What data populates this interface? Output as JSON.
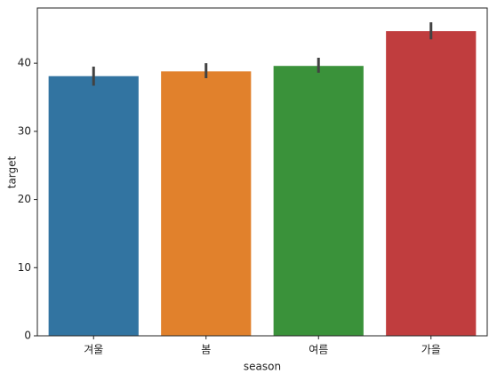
{
  "chart_data": {
    "type": "bar",
    "x_label": "season",
    "y_label": "target",
    "categories": [
      "겨울",
      "봄",
      "여름",
      "가을"
    ],
    "values": [
      38.1,
      38.8,
      39.6,
      44.7
    ],
    "error_low": [
      36.7,
      37.8,
      38.6,
      43.5
    ],
    "error_high": [
      39.5,
      40.0,
      40.8,
      46.0
    ],
    "colors": [
      "#3274a1",
      "#e1812c",
      "#3a923a",
      "#c03d3e"
    ],
    "error_color": "#424242",
    "ylim": [
      0,
      48.1
    ],
    "yticks": [
      0,
      10,
      20,
      30,
      40
    ],
    "grid": false
  }
}
